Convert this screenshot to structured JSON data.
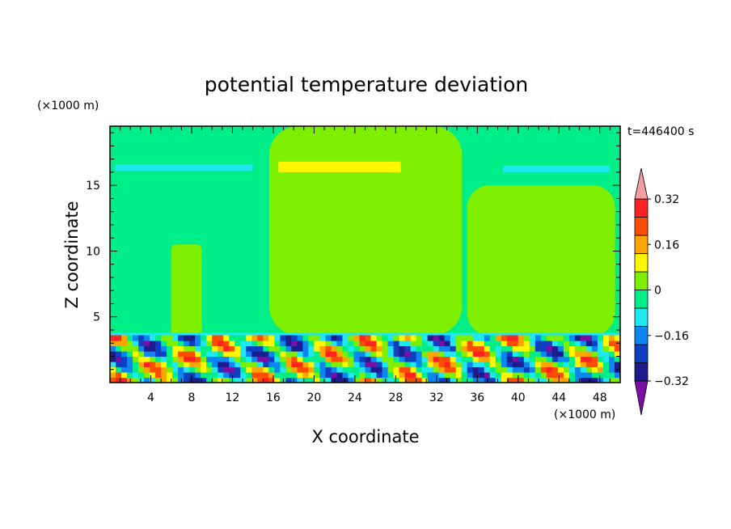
{
  "chart_data": {
    "type": "heatmap",
    "title": "potential temperature deviation",
    "xlabel": "X coordinate",
    "ylabel": "Z coordinate",
    "x_unit": "(×1000 m)",
    "y_unit": "(×1000 m)",
    "time_label": "t=446400 s",
    "xlim": [
      0,
      50
    ],
    "ylim": [
      0,
      19.5
    ],
    "x_ticks": [
      4,
      8,
      12,
      16,
      20,
      24,
      28,
      32,
      36,
      40,
      44,
      48
    ],
    "y_ticks": [
      5,
      10,
      15
    ],
    "colorbar": {
      "levels": [
        -0.4,
        -0.32,
        -0.24,
        -0.16,
        -0.08,
        0,
        0.08,
        0.16,
        0.24,
        0.32,
        0.4
      ],
      "tick_labels": [
        "0.32",
        "0.16",
        "0",
        "−0.16",
        "−0.32"
      ],
      "tick_values": [
        0.32,
        0.16,
        0,
        -0.16,
        -0.32
      ],
      "colors": [
        "#7b0fa5",
        "#1c1c8f",
        "#0e3ec2",
        "#0c86f0",
        "#1fe8f0",
        "#00ee88",
        "#7fef00",
        "#fff700",
        "#ffa500",
        "#ff4d00",
        "#ff2222",
        "#f0a0a0"
      ]
    },
    "regions": [
      {
        "level": -0.04,
        "desc": "background",
        "x": [
          0,
          50
        ],
        "z": [
          0,
          19.5
        ]
      },
      {
        "level": 0.04,
        "desc": "upper warm column",
        "x": [
          15.6,
          34.5
        ],
        "z": [
          3.6,
          19.5
        ]
      },
      {
        "level": 0.04,
        "desc": "right warm column",
        "x": [
          35,
          49.5
        ],
        "z": [
          3.6,
          15
        ]
      },
      {
        "level": 0.04,
        "desc": "left warm plume",
        "x": [
          6,
          9
        ],
        "z": [
          3.6,
          10.5
        ]
      },
      {
        "level": 0.12,
        "desc": "warm streak at tropopause",
        "x": [
          16.5,
          28.5
        ],
        "z": [
          16.0,
          16.8
        ]
      },
      {
        "level": -0.12,
        "desc": "cool streak at tropopause",
        "x": [
          0.5,
          14
        ],
        "z": [
          16.1,
          16.6
        ]
      },
      {
        "level": -0.12,
        "desc": "right cool streak at tropopause",
        "x": [
          38.5,
          49
        ],
        "z": [
          16.0,
          16.5
        ]
      },
      {
        "level": 0,
        "desc": "turbulent boundary layer",
        "x": [
          0,
          50
        ],
        "z": [
          0,
          3.6
        ]
      }
    ]
  }
}
